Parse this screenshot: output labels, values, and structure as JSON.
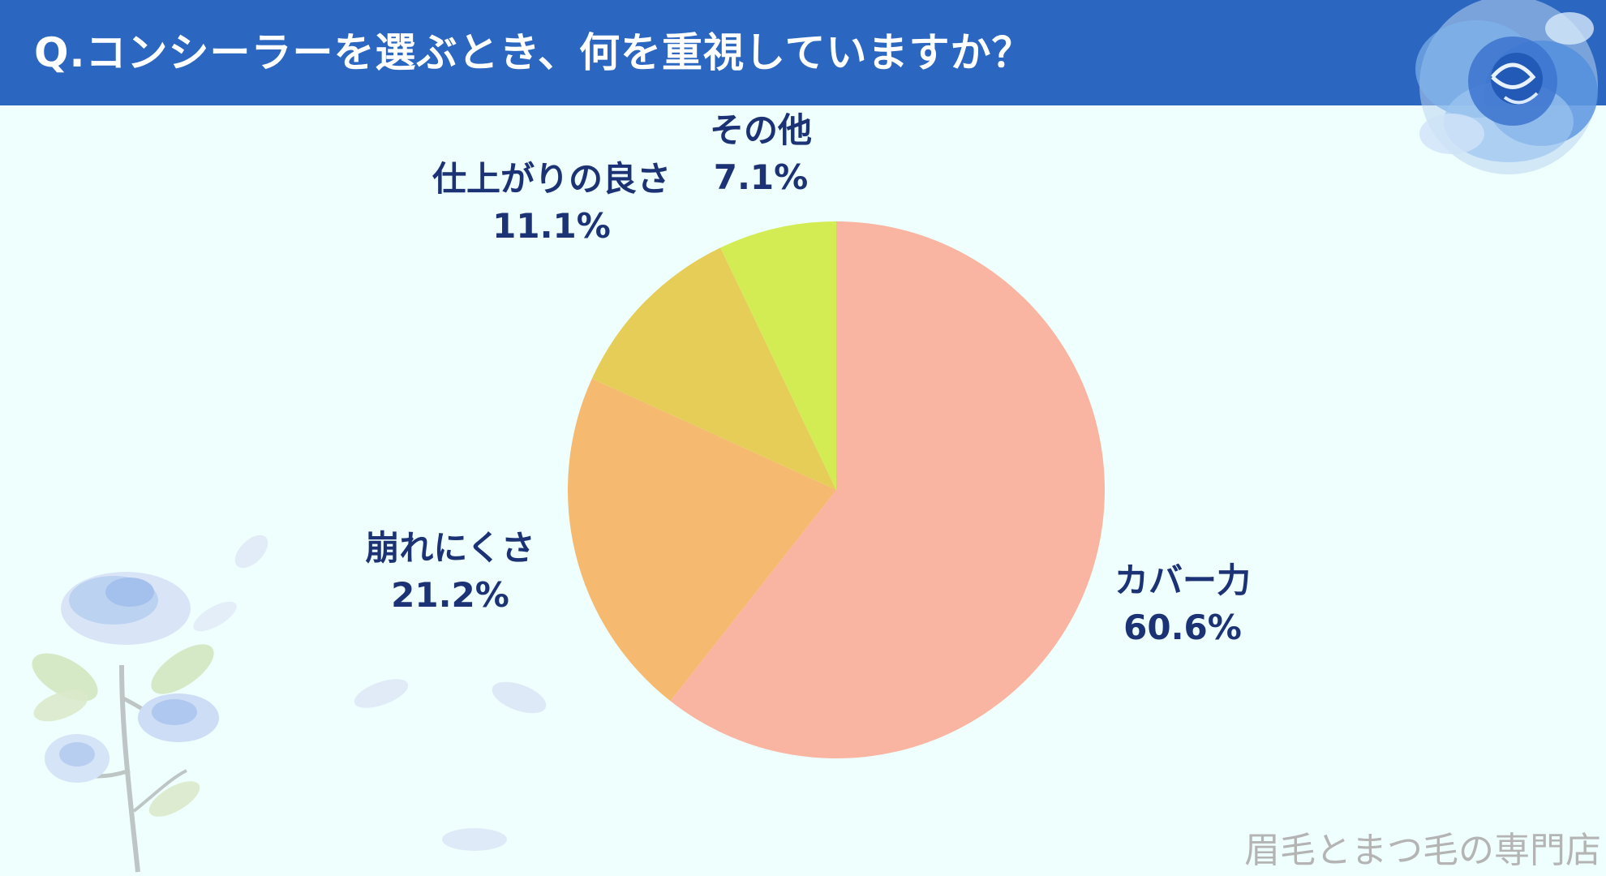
{
  "header": {
    "title": "Q.コンシーラーを選ぶとき、何を重視していますか？",
    "bg_color": "#2b67c0"
  },
  "decorations": {
    "top_right": "blue-rose-icon",
    "bottom_left": "blue-rose-branch-icon"
  },
  "watermark": "眉毛とまつ毛の専門店",
  "chart_data": {
    "type": "pie",
    "title": "",
    "start_angle": "12 o'clock",
    "direction": "clockwise",
    "slices": [
      {
        "label": "カバー力",
        "value": 60.6,
        "value_label": "60.6%",
        "color": "#f9b5a1"
      },
      {
        "label": "崩れにくさ",
        "value": 21.2,
        "value_label": "21.2%",
        "color": "#f5b970"
      },
      {
        "label": "仕上がりの良さ",
        "value": 11.1,
        "value_label": "11.1%",
        "color": "#e6cd58"
      },
      {
        "label": "その他",
        "value": 7.1,
        "value_label": "7.1%",
        "color": "#d3ec53"
      }
    ],
    "legend": "none"
  }
}
